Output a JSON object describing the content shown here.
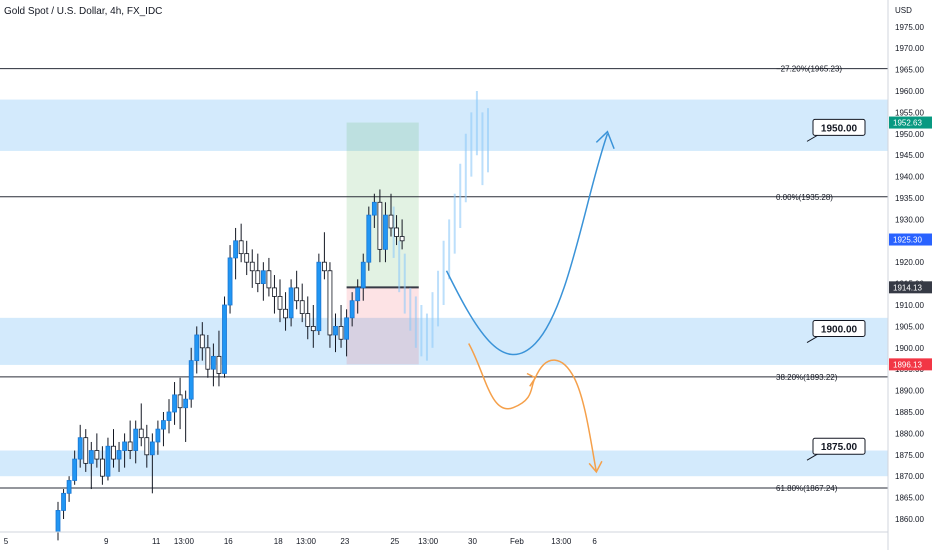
{
  "symbol": {
    "title": "Gold Spot / U.S. Dollar, 4h, FX_IDC"
  },
  "price_axis": {
    "currency": "USD",
    "ticks": [
      "1975.00",
      "1970.00",
      "1965.00",
      "1960.00",
      "1955.00",
      "1950.00",
      "1945.00",
      "1940.00",
      "1935.00",
      "1930.00",
      "1925.00",
      "1920.00",
      "1915.00",
      "1910.00",
      "1905.00",
      "1900.00",
      "1895.00",
      "1890.00",
      "1885.00",
      "1880.00",
      "1875.00",
      "1870.00",
      "1865.00",
      "1860.00"
    ],
    "tick_values": [
      1975,
      1970,
      1965,
      1960,
      1955,
      1950,
      1945,
      1940,
      1935,
      1930,
      1925,
      1920,
      1915,
      1910,
      1905,
      1900,
      1895,
      1890,
      1885,
      1880,
      1875,
      1870,
      1865,
      1860
    ],
    "badges": [
      {
        "label": "1952.63",
        "value": 1952.63,
        "color": "#089981"
      },
      {
        "label": "1925.30",
        "value": 1925.3,
        "color": "#2962ff"
      },
      {
        "label": "1914.13",
        "value": 1914.13,
        "color": "#363a45"
      },
      {
        "label": "1896.13",
        "value": 1896.13,
        "color": "#f23645"
      }
    ]
  },
  "time_axis": {
    "labels": [
      "5",
      "9",
      "11",
      "13:00",
      "16",
      "18",
      "13:00",
      "23",
      "25",
      "13:00",
      "30",
      "Feb",
      "13:00",
      "6"
    ],
    "label_bars": [
      -1,
      4,
      13,
      18,
      26,
      35,
      40,
      47,
      56,
      62,
      70,
      78,
      86,
      92
    ]
  },
  "fib_levels": [
    {
      "label": "−27.20%(1965.23)",
      "value": 1965.23
    },
    {
      "label": "0.00%(1935.28)",
      "value": 1935.28
    },
    {
      "label": "38.20%(1893.22)",
      "value": 1893.22
    },
    {
      "label": "61.80%(1867.24)",
      "value": 1867.24
    }
  ],
  "zones": [
    {
      "label": "1950.00",
      "top": 1958.0,
      "bottom": 1946.0,
      "callout_at": 1951.5
    },
    {
      "label": "1900.00",
      "top": 1907.0,
      "bottom": 1896.0,
      "callout_at": 1904.5
    },
    {
      "label": "1875.00",
      "top": 1876.0,
      "bottom": 1870.0,
      "callout_at": 1877.0
    }
  ],
  "position": {
    "entry": 1914.13,
    "target": 1952.63,
    "stop": 1896.13,
    "start_bar": 52,
    "end_bar": 65,
    "profit_color": "#4caf50",
    "loss_color": "#f23645"
  },
  "projections": {
    "blue_color": "#3a93d8",
    "orange_color": "#f5a04a"
  },
  "chart_data": {
    "type": "candlestick",
    "title": "Gold Spot / U.S. Dollar, 4h, FX_IDC",
    "ylim": [
      1858,
      1978
    ],
    "candles": [
      [
        1857,
        1864,
        1855,
        1862
      ],
      [
        1862,
        1867,
        1860,
        1866
      ],
      [
        1866,
        1870,
        1864,
        1869
      ],
      [
        1869,
        1876,
        1868,
        1874
      ],
      [
        1874,
        1882,
        1872,
        1879
      ],
      [
        1879,
        1881,
        1871,
        1873
      ],
      [
        1873,
        1878,
        1867,
        1876
      ],
      [
        1876,
        1880,
        1872,
        1874
      ],
      [
        1874,
        1877,
        1868,
        1870
      ],
      [
        1870,
        1879,
        1869,
        1877
      ],
      [
        1877,
        1881,
        1872,
        1874
      ],
      [
        1874,
        1878,
        1871,
        1876
      ],
      [
        1876,
        1880,
        1872,
        1878
      ],
      [
        1878,
        1883,
        1874,
        1876
      ],
      [
        1876,
        1883,
        1873,
        1881
      ],
      [
        1881,
        1887,
        1877,
        1879
      ],
      [
        1879,
        1882,
        1872,
        1875
      ],
      [
        1875,
        1880,
        1866,
        1878
      ],
      [
        1878,
        1883,
        1875,
        1881
      ],
      [
        1881,
        1885,
        1877,
        1883
      ],
      [
        1883,
        1888,
        1880,
        1885
      ],
      [
        1885,
        1892,
        1882,
        1889
      ],
      [
        1889,
        1893,
        1881,
        1886
      ],
      [
        1886,
        1890,
        1878,
        1888
      ],
      [
        1888,
        1900,
        1886,
        1897
      ],
      [
        1897,
        1905,
        1894,
        1903
      ],
      [
        1903,
        1906,
        1897,
        1900
      ],
      [
        1900,
        1903,
        1893,
        1895
      ],
      [
        1895,
        1901,
        1891,
        1898
      ],
      [
        1898,
        1904,
        1891,
        1894
      ],
      [
        1894,
        1912,
        1893,
        1910
      ],
      [
        1910,
        1924,
        1908,
        1921
      ],
      [
        1921,
        1928,
        1916,
        1925
      ],
      [
        1925,
        1929,
        1920,
        1922
      ],
      [
        1922,
        1925,
        1917,
        1920
      ],
      [
        1920,
        1923,
        1914,
        1918
      ],
      [
        1918,
        1922,
        1913,
        1915
      ],
      [
        1915,
        1920,
        1911,
        1918
      ],
      [
        1918,
        1921,
        1912,
        1914
      ],
      [
        1914,
        1917,
        1908,
        1912
      ],
      [
        1912,
        1916,
        1906,
        1909
      ],
      [
        1909,
        1913,
        1904,
        1907
      ],
      [
        1907,
        1916,
        1905,
        1914
      ],
      [
        1914,
        1918,
        1909,
        1911
      ],
      [
        1911,
        1915,
        1906,
        1908
      ],
      [
        1908,
        1912,
        1902,
        1905
      ],
      [
        1905,
        1910,
        1900,
        1904
      ],
      [
        1904,
        1922,
        1903,
        1920
      ],
      [
        1920,
        1927,
        1916,
        1918
      ],
      [
        1918,
        1920,
        1900,
        1903
      ],
      [
        1903,
        1908,
        1899,
        1905
      ],
      [
        1905,
        1910,
        1900,
        1902
      ],
      [
        1902,
        1909,
        1898,
        1907
      ],
      [
        1907,
        1913,
        1905,
        1911
      ],
      [
        1911,
        1916,
        1908,
        1914
      ],
      [
        1914,
        1922,
        1911,
        1920
      ],
      [
        1920,
        1933,
        1918,
        1931
      ],
      [
        1931,
        1936,
        1928,
        1934
      ],
      [
        1934,
        1937,
        1920,
        1923
      ],
      [
        1923,
        1934,
        1920,
        1931
      ],
      [
        1931,
        1936,
        1926,
        1928
      ],
      [
        1928,
        1931,
        1924,
        1926
      ],
      [
        1926,
        1930,
        1923,
        1925
      ]
    ],
    "ghost_bars": [
      [
        1921,
        1933
      ],
      [
        1913,
        1925
      ],
      [
        1908,
        1922
      ],
      [
        1904,
        1914
      ],
      [
        1900,
        1912
      ],
      [
        1898,
        1910
      ],
      [
        1897,
        1908
      ],
      [
        1900,
        1913
      ],
      [
        1905,
        1918
      ],
      [
        1910,
        1925
      ],
      [
        1916,
        1930
      ],
      [
        1922,
        1936
      ],
      [
        1928,
        1943
      ],
      [
        1934,
        1950
      ],
      [
        1940,
        1955
      ],
      [
        1945,
        1960
      ],
      [
        1938,
        1955
      ],
      [
        1941,
        1956
      ]
    ]
  }
}
